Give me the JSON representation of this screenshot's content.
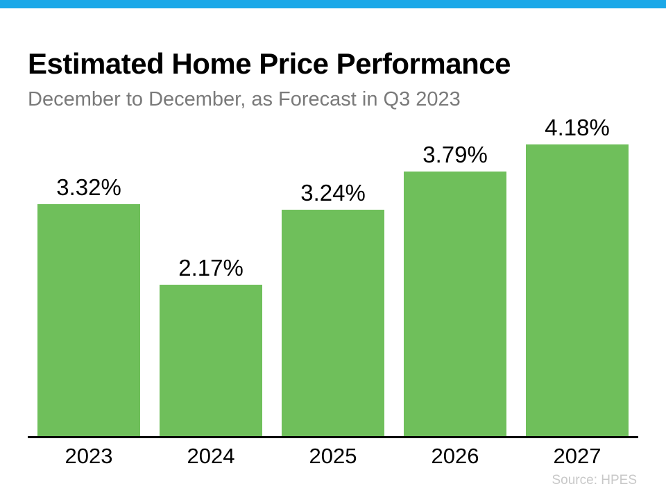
{
  "accent": {
    "top_bar_color": "#1BA8E8"
  },
  "header": {
    "title": "Estimated Home Price Performance",
    "subtitle": "December to December, as Forecast in Q3 2023"
  },
  "chart_data": {
    "type": "bar",
    "categories": [
      "2023",
      "2024",
      "2025",
      "2026",
      "2027"
    ],
    "values": [
      3.32,
      2.17,
      3.24,
      3.79,
      4.18
    ],
    "value_labels": [
      "3.32%",
      "2.17%",
      "3.24%",
      "3.79%",
      "4.18%"
    ],
    "title": "Estimated Home Price Performance",
    "subtitle": "December to December, as Forecast in Q3 2023",
    "xlabel": "",
    "ylabel": "",
    "ylim": [
      0,
      4.18
    ],
    "grid": false,
    "legend_position": "none",
    "bar_color": "#6FBF5B",
    "axis_line_color": "#000000",
    "value_label_position": "above"
  },
  "footer": {
    "source_label": "Source: HPES"
  }
}
